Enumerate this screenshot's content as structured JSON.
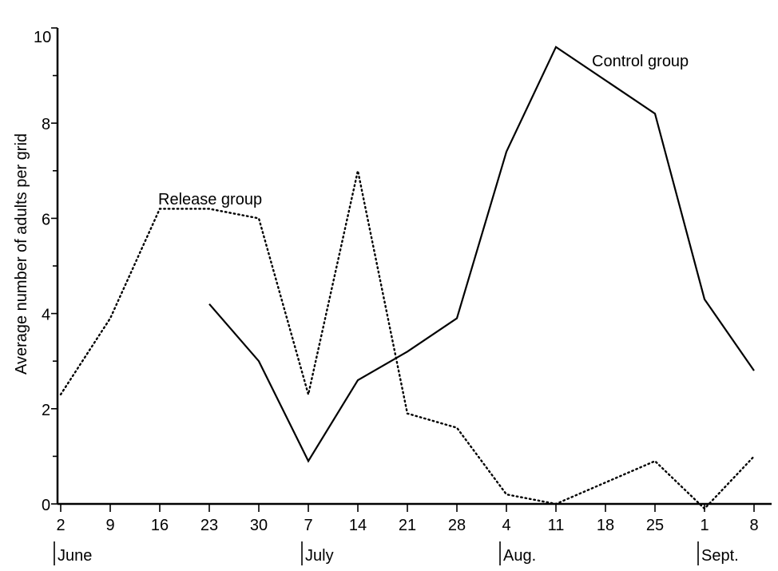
{
  "chart_data": {
    "type": "line",
    "title": "",
    "xlabel": "",
    "ylabel": "Average number of adults per grid",
    "ylim": [
      0,
      10
    ],
    "yticks": [
      "0",
      "2",
      "4",
      "6",
      "8",
      "10"
    ],
    "xticks": [
      "2",
      "9",
      "16",
      "23",
      "30",
      "7",
      "14",
      "21",
      "28",
      "4",
      "11",
      "18",
      "25",
      "1",
      "8"
    ],
    "months": [
      "June",
      "July",
      "Aug.",
      "Sept."
    ],
    "grid": false,
    "series": [
      {
        "name": "Release group",
        "style": "dotted",
        "color": "#000000",
        "values": [
          2.3,
          3.9,
          6.2,
          6.2,
          6.0,
          2.3,
          7.0,
          1.9,
          1.6,
          0.2,
          0.0,
          null,
          0.9,
          -0.1,
          1.0
        ]
      },
      {
        "name": "Control group",
        "style": "solid",
        "color": "#000000",
        "values": [
          null,
          null,
          null,
          4.2,
          3.0,
          0.9,
          2.6,
          3.2,
          3.9,
          7.4,
          9.6,
          null,
          8.2,
          4.3,
          2.8
        ]
      }
    ]
  }
}
